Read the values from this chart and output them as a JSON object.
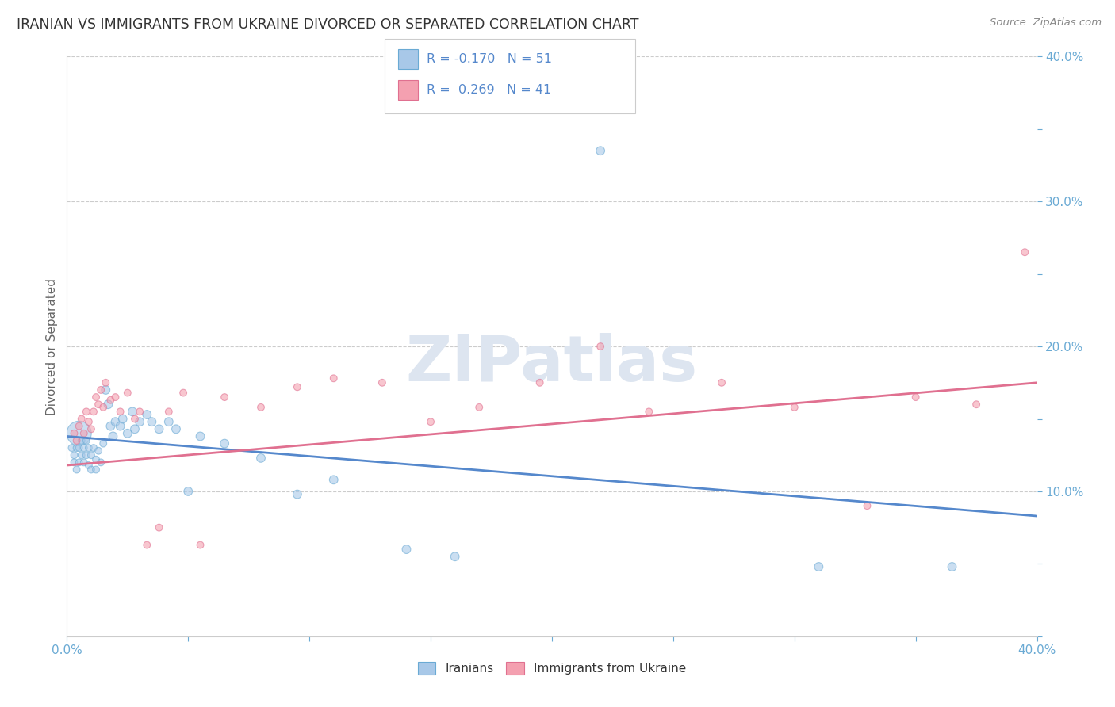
{
  "title": "IRANIAN VS IMMIGRANTS FROM UKRAINE DIVORCED OR SEPARATED CORRELATION CHART",
  "source": "Source: ZipAtlas.com",
  "ylabel": "Divorced or Separated",
  "color_blue": "#a8c8e8",
  "color_pink": "#f4a0b0",
  "color_blue_edge": "#6aaad4",
  "color_pink_edge": "#e07090",
  "color_blue_line": "#5588cc",
  "color_pink_line": "#e07090",
  "color_tick": "#6aaad4",
  "color_grid": "#cccccc",
  "watermark_color": "#dde5f0",
  "xmin": 0.0,
  "xmax": 0.4,
  "ymin": 0.0,
  "ymax": 0.4,
  "iran_trendline": [
    0.0,
    0.138,
    0.4,
    0.083
  ],
  "ukraine_trendline": [
    0.0,
    0.118,
    0.4,
    0.175
  ],
  "iranians_x": [
    0.002,
    0.003,
    0.003,
    0.004,
    0.004,
    0.005,
    0.005,
    0.005,
    0.006,
    0.006,
    0.007,
    0.007,
    0.008,
    0.008,
    0.009,
    0.009,
    0.01,
    0.01,
    0.011,
    0.012,
    0.012,
    0.013,
    0.014,
    0.015,
    0.016,
    0.017,
    0.018,
    0.019,
    0.02,
    0.022,
    0.023,
    0.025,
    0.027,
    0.028,
    0.03,
    0.033,
    0.035,
    0.038,
    0.042,
    0.045,
    0.05,
    0.055,
    0.065,
    0.08,
    0.095,
    0.11,
    0.14,
    0.16,
    0.22,
    0.31,
    0.365
  ],
  "iranians_y": [
    0.13,
    0.125,
    0.12,
    0.13,
    0.115,
    0.14,
    0.13,
    0.12,
    0.135,
    0.125,
    0.13,
    0.12,
    0.135,
    0.125,
    0.13,
    0.118,
    0.125,
    0.115,
    0.13,
    0.122,
    0.115,
    0.128,
    0.12,
    0.133,
    0.17,
    0.16,
    0.145,
    0.138,
    0.148,
    0.145,
    0.15,
    0.14,
    0.155,
    0.143,
    0.148,
    0.153,
    0.148,
    0.143,
    0.148,
    0.143,
    0.1,
    0.138,
    0.133,
    0.123,
    0.098,
    0.108,
    0.06,
    0.055,
    0.335,
    0.048,
    0.048
  ],
  "iranians_size": [
    40,
    40,
    40,
    40,
    40,
    500,
    40,
    40,
    40,
    40,
    40,
    40,
    40,
    40,
    40,
    40,
    40,
    40,
    40,
    40,
    40,
    40,
    40,
    40,
    60,
    60,
    60,
    60,
    60,
    60,
    60,
    60,
    60,
    60,
    60,
    60,
    60,
    60,
    60,
    60,
    60,
    60,
    60,
    60,
    60,
    60,
    60,
    60,
    60,
    60,
    60
  ],
  "ukraine_x": [
    0.003,
    0.004,
    0.005,
    0.006,
    0.007,
    0.008,
    0.009,
    0.01,
    0.011,
    0.012,
    0.013,
    0.014,
    0.015,
    0.016,
    0.018,
    0.02,
    0.022,
    0.025,
    0.028,
    0.03,
    0.033,
    0.038,
    0.042,
    0.048,
    0.055,
    0.065,
    0.08,
    0.095,
    0.11,
    0.13,
    0.15,
    0.17,
    0.195,
    0.22,
    0.24,
    0.27,
    0.3,
    0.33,
    0.35,
    0.375,
    0.395
  ],
  "ukraine_y": [
    0.14,
    0.135,
    0.145,
    0.15,
    0.14,
    0.155,
    0.148,
    0.143,
    0.155,
    0.165,
    0.16,
    0.17,
    0.158,
    0.175,
    0.163,
    0.165,
    0.155,
    0.168,
    0.15,
    0.155,
    0.063,
    0.075,
    0.155,
    0.168,
    0.063,
    0.165,
    0.158,
    0.172,
    0.178,
    0.175,
    0.148,
    0.158,
    0.175,
    0.2,
    0.155,
    0.175,
    0.158,
    0.09,
    0.165,
    0.16,
    0.265
  ],
  "ukraine_size": [
    40,
    40,
    40,
    40,
    40,
    40,
    40,
    40,
    40,
    40,
    40,
    40,
    40,
    40,
    40,
    40,
    40,
    40,
    40,
    40,
    40,
    40,
    40,
    40,
    40,
    40,
    40,
    40,
    40,
    40,
    40,
    40,
    40,
    40,
    40,
    40,
    40,
    40,
    40,
    40,
    40
  ]
}
